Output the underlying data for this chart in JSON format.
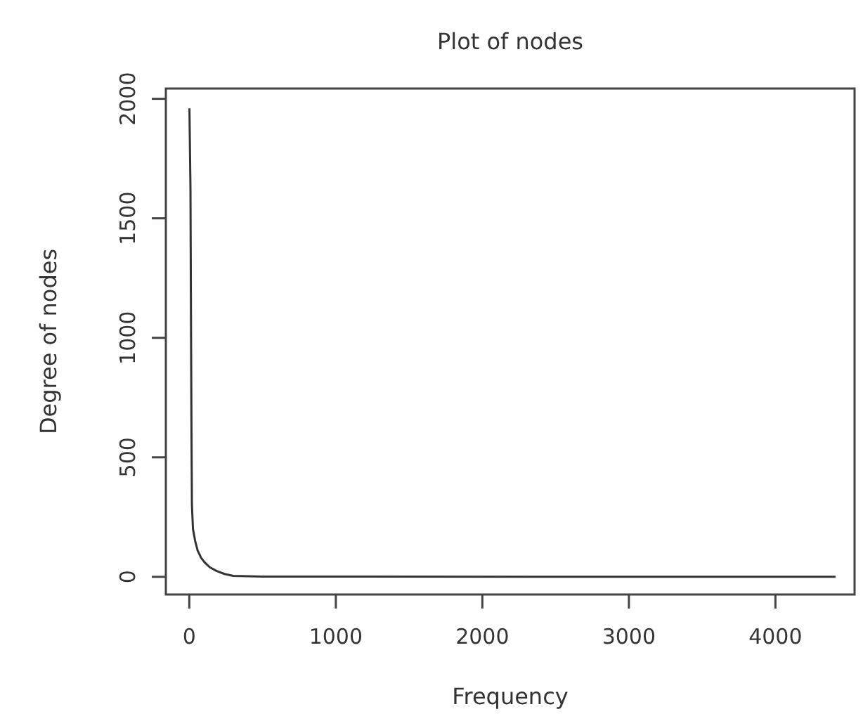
{
  "chart_data": {
    "type": "line",
    "title": "Plot of nodes",
    "xlabel": "Frequency",
    "ylabel": "Degree of nodes",
    "x": [
      1,
      8,
      12,
      15,
      18,
      25,
      40,
      57,
      80,
      105,
      140,
      185,
      240,
      300,
      500,
      4410
    ],
    "series": [
      {
        "color": "#333333",
        "values": [
          1960,
          1620,
          1000,
          600,
          300,
          200,
          150,
          110,
          80,
          60,
          40,
          25,
          12,
          4,
          1,
          0
        ]
      }
    ],
    "xlim": [
      -160,
      4540
    ],
    "xticks": [
      0,
      1000,
      2000,
      3000,
      4000
    ],
    "ylim": [
      -74,
      2043
    ],
    "yticks": [
      0,
      500,
      1000,
      1500,
      2000
    ],
    "grid": false,
    "marker": "none",
    "line_style": "solid"
  }
}
